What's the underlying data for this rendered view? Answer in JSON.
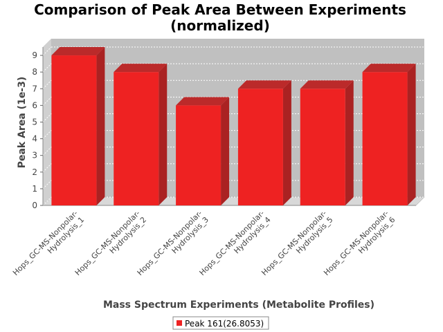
{
  "chart_data": {
    "type": "bar",
    "title_lines": [
      "Comparison of Peak Area Between Experiments",
      "(normalized)"
    ],
    "xlabel": "Mass Spectrum Experiments (Metabolite Profiles)",
    "ylabel": "Peak Area (1e-3)",
    "ylim": [
      0,
      9.5
    ],
    "yticks": [
      "0",
      "1",
      "2",
      "3",
      "4",
      "5",
      "6",
      "7",
      "8",
      "9"
    ],
    "categories": [
      [
        "Hops_GC-MS-Nonpolar-",
        "Hydrolysis_1"
      ],
      [
        "Hops_GC-MS-Nonpolar-",
        "Hydrolysis_2"
      ],
      [
        "Hops_GC-MS-Nonpolar-",
        "Hydrolysis_3"
      ],
      [
        "Hops_GC-MS-Nonpolar-",
        "Hydrolysis_4"
      ],
      [
        "Hops_GC-MS-Nonpolar-",
        "Hydrolysis_5"
      ],
      [
        "Hops_GC-MS-Nonpolar-",
        "Hydrolysis_6"
      ]
    ],
    "series": [
      {
        "name": "Peak 161(26.8053)",
        "values": [
          9,
          8,
          6,
          7,
          7,
          8
        ],
        "color": "#ee2222"
      }
    ],
    "grid": true,
    "legend_position": "bottom-center"
  }
}
